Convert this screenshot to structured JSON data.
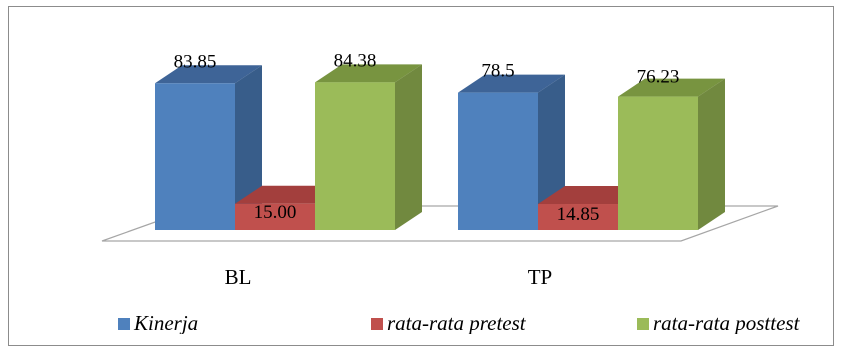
{
  "chart_data": {
    "type": "bar",
    "style": "3d-column",
    "categories": [
      "BL",
      "TP"
    ],
    "series": [
      {
        "name": "Kinerja",
        "values": [
          83.85,
          78.5
        ],
        "labels": [
          "83.85",
          "78.5"
        ],
        "color": "#4f81bd",
        "side": "#385d8a",
        "top": "#3e6497"
      },
      {
        "name": "rata-rata pretest",
        "values": [
          15.0,
          14.85
        ],
        "labels": [
          "15.00",
          "14.85"
        ],
        "color": "#c0504d",
        "side": "#8c3836",
        "top": "#a33f3d"
      },
      {
        "name": "rata-rata posttest",
        "values": [
          84.38,
          76.23
        ],
        "labels": [
          "84.38",
          "76.23"
        ],
        "color": "#9bbb59",
        "side": "#71893f",
        "top": "#789440"
      }
    ],
    "legend_position": "bottom",
    "grid": false,
    "ylim": [
      0,
      100
    ]
  }
}
